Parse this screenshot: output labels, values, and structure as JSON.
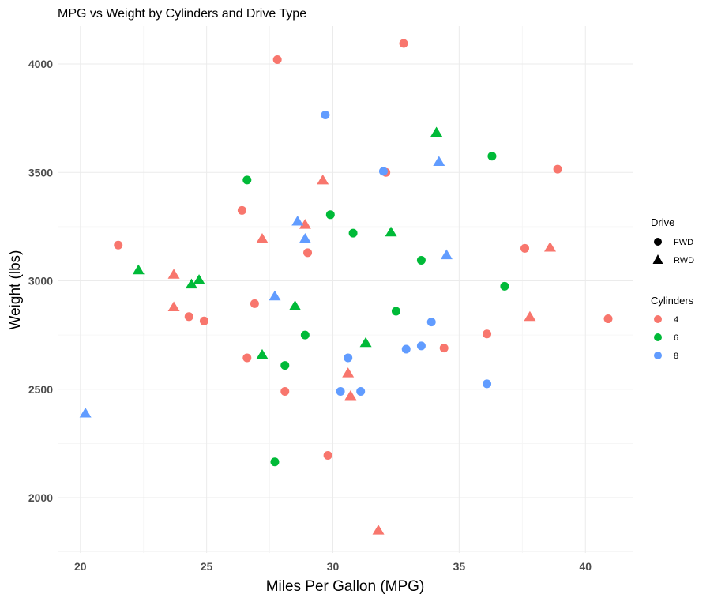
{
  "chart_data": {
    "type": "scatter",
    "title": "MPG vs Weight by Cylinders and Drive Type",
    "xlabel": "Miles Per Gallon (MPG)",
    "ylabel": "Weight (lbs)",
    "xlim": [
      19.1,
      41.9
    ],
    "ylim": [
      1745,
      4175
    ],
    "x_ticks": [
      20,
      25,
      30,
      35,
      40
    ],
    "x_tick_labels": [
      "20",
      "25",
      "30",
      "35",
      "40"
    ],
    "y_ticks": [
      2000,
      2500,
      3000,
      3500,
      4000
    ],
    "y_tick_labels": [
      "2000",
      "2500",
      "3000",
      "3500",
      "4000"
    ],
    "grid": true,
    "legend_position": "right",
    "legends": {
      "drive": {
        "title": "Drive",
        "entries": [
          {
            "label": "FWD",
            "shape": "circle"
          },
          {
            "label": "RWD",
            "shape": "triangle"
          }
        ]
      },
      "cylinders": {
        "title": "Cylinders",
        "entries": [
          {
            "label": "4",
            "color": "#F8766D"
          },
          {
            "label": "6",
            "color": "#00BA38"
          },
          {
            "label": "8",
            "color": "#619CFF"
          }
        ]
      }
    },
    "colors": {
      "4": "#F8766D",
      "6": "#00BA38",
      "8": "#619CFF"
    },
    "series": [
      {
        "name": "4 cylinders",
        "cylinders": "4",
        "points": [
          {
            "x": 21.5,
            "y": 3165,
            "drive": "FWD"
          },
          {
            "x": 23.7,
            "y": 3030,
            "drive": "RWD"
          },
          {
            "x": 23.7,
            "y": 2880,
            "drive": "RWD"
          },
          {
            "x": 24.3,
            "y": 2835,
            "drive": "FWD"
          },
          {
            "x": 24.9,
            "y": 2815,
            "drive": "FWD"
          },
          {
            "x": 26.4,
            "y": 3325,
            "drive": "FWD"
          },
          {
            "x": 26.6,
            "y": 2645,
            "drive": "FWD"
          },
          {
            "x": 26.9,
            "y": 2895,
            "drive": "FWD"
          },
          {
            "x": 27.2,
            "y": 3195,
            "drive": "RWD"
          },
          {
            "x": 27.8,
            "y": 4020,
            "drive": "FWD"
          },
          {
            "x": 28.1,
            "y": 2490,
            "drive": "FWD"
          },
          {
            "x": 28.9,
            "y": 3260,
            "drive": "RWD"
          },
          {
            "x": 29.0,
            "y": 3130,
            "drive": "FWD"
          },
          {
            "x": 29.6,
            "y": 3465,
            "drive": "RWD"
          },
          {
            "x": 29.8,
            "y": 2195,
            "drive": "FWD"
          },
          {
            "x": 30.6,
            "y": 2575,
            "drive": "RWD"
          },
          {
            "x": 30.7,
            "y": 2470,
            "drive": "RWD"
          },
          {
            "x": 31.8,
            "y": 1850,
            "drive": "RWD"
          },
          {
            "x": 32.1,
            "y": 3500,
            "drive": "FWD"
          },
          {
            "x": 32.8,
            "y": 4095,
            "drive": "FWD"
          },
          {
            "x": 34.4,
            "y": 2690,
            "drive": "FWD"
          },
          {
            "x": 36.1,
            "y": 2755,
            "drive": "FWD"
          },
          {
            "x": 37.6,
            "y": 3150,
            "drive": "FWD"
          },
          {
            "x": 37.8,
            "y": 2835,
            "drive": "RWD"
          },
          {
            "x": 38.6,
            "y": 3155,
            "drive": "RWD"
          },
          {
            "x": 38.9,
            "y": 3515,
            "drive": "FWD"
          },
          {
            "x": 40.9,
            "y": 2825,
            "drive": "FWD"
          }
        ]
      },
      {
        "name": "6 cylinders",
        "cylinders": "6",
        "points": [
          {
            "x": 22.3,
            "y": 3050,
            "drive": "RWD"
          },
          {
            "x": 24.4,
            "y": 2985,
            "drive": "RWD"
          },
          {
            "x": 24.7,
            "y": 3005,
            "drive": "RWD"
          },
          {
            "x": 26.6,
            "y": 3465,
            "drive": "FWD"
          },
          {
            "x": 27.2,
            "y": 2660,
            "drive": "RWD"
          },
          {
            "x": 27.7,
            "y": 2165,
            "drive": "FWD"
          },
          {
            "x": 28.1,
            "y": 2610,
            "drive": "FWD"
          },
          {
            "x": 28.5,
            "y": 2885,
            "drive": "RWD"
          },
          {
            "x": 28.9,
            "y": 2750,
            "drive": "FWD"
          },
          {
            "x": 29.9,
            "y": 3305,
            "drive": "FWD"
          },
          {
            "x": 30.8,
            "y": 3220,
            "drive": "FWD"
          },
          {
            "x": 31.3,
            "y": 2715,
            "drive": "RWD"
          },
          {
            "x": 32.3,
            "y": 3225,
            "drive": "RWD"
          },
          {
            "x": 32.5,
            "y": 2860,
            "drive": "FWD"
          },
          {
            "x": 33.5,
            "y": 3095,
            "drive": "FWD"
          },
          {
            "x": 34.1,
            "y": 3685,
            "drive": "RWD"
          },
          {
            "x": 36.3,
            "y": 3575,
            "drive": "FWD"
          },
          {
            "x": 36.8,
            "y": 2975,
            "drive": "FWD"
          }
        ]
      },
      {
        "name": "8 cylinders",
        "cylinders": "8",
        "points": [
          {
            "x": 20.2,
            "y": 2390,
            "drive": "RWD"
          },
          {
            "x": 27.7,
            "y": 2930,
            "drive": "RWD"
          },
          {
            "x": 28.6,
            "y": 3275,
            "drive": "RWD"
          },
          {
            "x": 28.9,
            "y": 3195,
            "drive": "RWD"
          },
          {
            "x": 29.7,
            "y": 3765,
            "drive": "FWD"
          },
          {
            "x": 30.3,
            "y": 2490,
            "drive": "FWD"
          },
          {
            "x": 30.6,
            "y": 2645,
            "drive": "FWD"
          },
          {
            "x": 31.1,
            "y": 2490,
            "drive": "FWD"
          },
          {
            "x": 32.0,
            "y": 3505,
            "drive": "FWD"
          },
          {
            "x": 32.9,
            "y": 2685,
            "drive": "FWD"
          },
          {
            "x": 33.5,
            "y": 2700,
            "drive": "FWD"
          },
          {
            "x": 33.9,
            "y": 2810,
            "drive": "FWD"
          },
          {
            "x": 34.2,
            "y": 3550,
            "drive": "RWD"
          },
          {
            "x": 34.5,
            "y": 3120,
            "drive": "RWD"
          },
          {
            "x": 36.1,
            "y": 2525,
            "drive": "FWD"
          }
        ]
      }
    ]
  }
}
